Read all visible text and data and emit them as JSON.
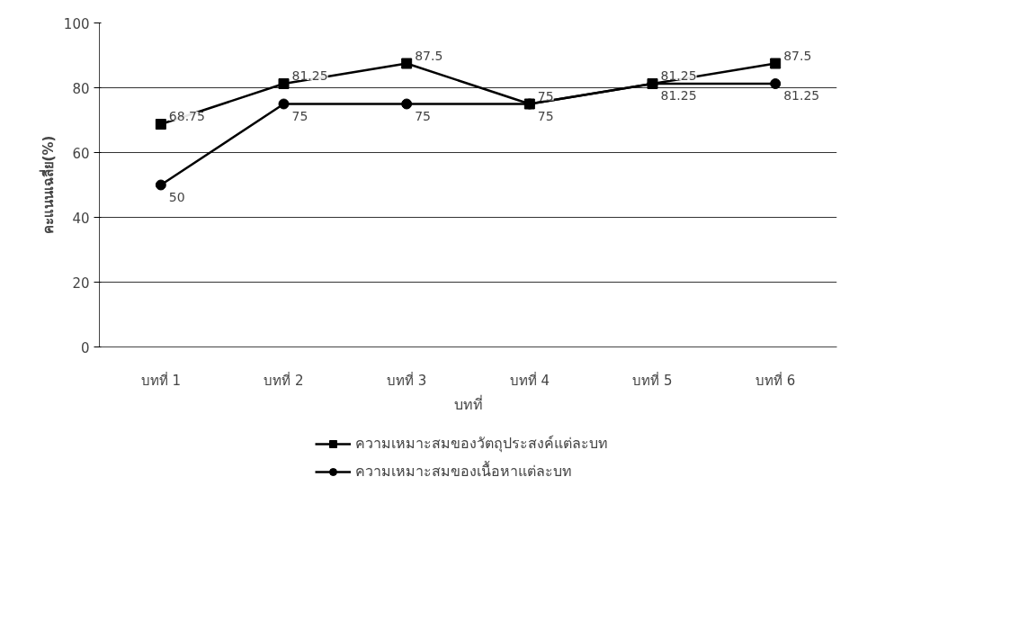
{
  "chart_data": {
    "type": "line",
    "xlabel": "บทที่",
    "ylabel": "คะแนนเฉลี่ย(%)",
    "categories": [
      "บทที่ 1",
      "บทที่ 2",
      "บทที่ 3",
      "บทที่ 4",
      "บทที่ 5",
      "บทที่ 6"
    ],
    "series": [
      {
        "name": "ความเหมาะสมของวัตถุประสงค์แต่ละบท",
        "color": "#000000",
        "marker": "square",
        "values": [
          68.75,
          81.25,
          87.5,
          75,
          81.25,
          87.5
        ]
      },
      {
        "name": "ความเหมาะสมของเนื้อหาแต่ละบท",
        "color": "#000000",
        "marker": "circle",
        "values": [
          50,
          75,
          75,
          75,
          81.25,
          81.25
        ]
      }
    ],
    "ylim": [
      0,
      100
    ],
    "yticks": [
      0,
      20,
      40,
      60,
      80,
      100
    ],
    "grid": "y",
    "legend": "bottom",
    "data_labels": true,
    "line_style": "solid"
  }
}
